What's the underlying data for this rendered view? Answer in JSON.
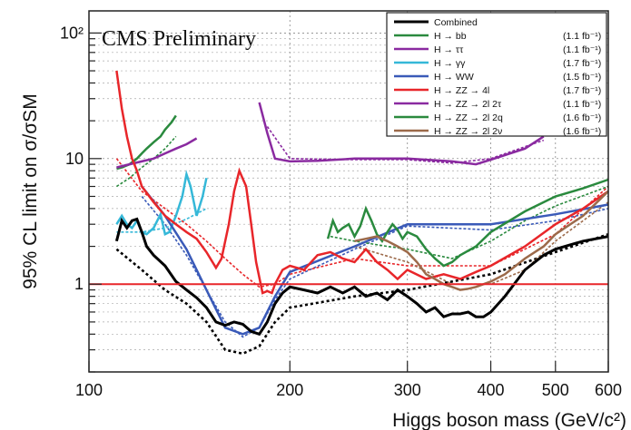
{
  "chart_data": {
    "type": "line",
    "annotation": "CMS Preliminary",
    "xlabel": "Higgs boson mass (GeV/c²)",
    "ylabel": "95% CL limit on σ/σSM",
    "xscale": "log",
    "yscale": "log",
    "xlim": [
      100,
      600
    ],
    "ylim": [
      0.2,
      150
    ],
    "xticks": [
      100,
      200,
      300,
      400,
      500,
      600
    ],
    "yticks": [
      1,
      10,
      100
    ],
    "ytick_labels": [
      "1",
      "10",
      "10²"
    ],
    "grid": true,
    "legend_position": "top-right",
    "reference_line": {
      "y": 1,
      "color": "#e8262a"
    },
    "series": [
      {
        "name": "Combined",
        "lumi": "",
        "color": "#000000",
        "width": 3,
        "x": [
          110,
          112,
          114,
          116,
          118,
          120,
          122,
          125,
          130,
          135,
          140,
          145,
          150,
          155,
          160,
          165,
          170,
          175,
          180,
          185,
          190,
          195,
          200,
          210,
          220,
          230,
          240,
          250,
          260,
          270,
          280,
          290,
          300,
          310,
          320,
          330,
          340,
          350,
          360,
          370,
          380,
          390,
          400,
          420,
          450,
          480,
          500,
          550,
          600
        ],
        "y": [
          2.2,
          3.2,
          2.8,
          3.2,
          3.3,
          2.6,
          2.0,
          1.7,
          1.4,
          1.05,
          0.9,
          0.78,
          0.65,
          0.5,
          0.47,
          0.5,
          0.48,
          0.42,
          0.4,
          0.5,
          0.7,
          0.85,
          0.95,
          0.9,
          0.85,
          0.95,
          0.85,
          0.95,
          0.8,
          0.85,
          0.75,
          0.9,
          0.8,
          0.7,
          0.6,
          0.65,
          0.55,
          0.58,
          0.58,
          0.6,
          0.55,
          0.55,
          0.6,
          0.8,
          1.3,
          1.7,
          1.9,
          2.2,
          2.4
        ]
      },
      {
        "name": "H → bb",
        "lumi": "(1.1 fb⁻¹)",
        "color": "#2a8a3e",
        "width": 2.5,
        "x": [
          110,
          112,
          115,
          118,
          120,
          122,
          125,
          128,
          130,
          133,
          135
        ],
        "y": [
          8.3,
          8.5,
          9.0,
          10.0,
          11.0,
          12.0,
          13.5,
          15.0,
          17.0,
          19.5,
          22.0
        ]
      },
      {
        "name": "H → ττ",
        "lumi": "(1.1 fb⁻¹)",
        "color": "#8a2aa0",
        "width": 2.5,
        "x": [
          110,
          115,
          120,
          125,
          130,
          135,
          140,
          145
        ],
        "y": [
          8.5,
          9.0,
          9.5,
          10.0,
          11.0,
          12.0,
          13.0,
          14.5
        ]
      },
      {
        "name": "H → γγ",
        "lumi": "(1.7 fb⁻¹)",
        "color": "#35b8d8",
        "width": 2.5,
        "x": [
          110,
          112,
          114,
          116,
          118,
          120,
          122,
          125,
          128,
          130,
          132,
          135,
          138,
          140,
          142,
          145,
          148,
          150
        ],
        "y": [
          3.0,
          3.5,
          3.0,
          2.8,
          3.2,
          2.6,
          2.5,
          2.8,
          3.6,
          2.5,
          2.6,
          3.5,
          5.0,
          7.5,
          6.0,
          3.5,
          5.0,
          7.0
        ]
      },
      {
        "name": "H → WW",
        "lumi": "(1.5 fb⁻¹)",
        "color": "#3a5ab8",
        "width": 2.5,
        "x": [
          120,
          130,
          140,
          150,
          160,
          170,
          180,
          190,
          200,
          250,
          300,
          400,
          500,
          600
        ],
        "y": [
          6.0,
          3.5,
          1.9,
          0.9,
          0.45,
          0.4,
          0.45,
          0.8,
          1.25,
          2.0,
          3.0,
          3.0,
          3.6,
          4.3
        ]
      },
      {
        "name": "H → ZZ → 4l",
        "lumi": "(1.7 fb⁻¹)",
        "color": "#e8262a",
        "width": 2.5,
        "x": [
          110,
          112,
          114,
          116,
          118,
          120,
          125,
          130,
          135,
          140,
          145,
          150,
          155,
          158,
          162,
          165,
          168,
          172,
          175,
          178,
          182,
          185,
          188,
          190,
          195,
          200,
          210,
          220,
          230,
          240,
          250,
          260,
          270,
          280,
          290,
          300,
          320,
          340,
          360,
          380,
          400,
          450,
          500,
          550,
          600
        ],
        "y": [
          50,
          25,
          15,
          10,
          8.0,
          6.0,
          4.5,
          3.5,
          3.0,
          2.6,
          2.3,
          1.8,
          1.35,
          1.6,
          3.0,
          5.5,
          8.0,
          6.0,
          3.0,
          1.5,
          0.85,
          0.88,
          0.85,
          1.0,
          1.3,
          1.4,
          1.3,
          1.7,
          1.8,
          1.6,
          1.5,
          1.9,
          1.5,
          1.3,
          1.1,
          1.3,
          1.1,
          1.2,
          1.1,
          1.25,
          1.4,
          2.0,
          3.0,
          4.0,
          5.5
        ]
      },
      {
        "name": "H → ZZ → 2l 2τ",
        "lumi": "(1.1 fb⁻¹)",
        "color": "#8a2aa0",
        "width": 2.5,
        "x": [
          180,
          185,
          190,
          200,
          220,
          250,
          300,
          350,
          380,
          400,
          450,
          480
        ],
        "y": [
          28,
          16,
          10,
          9.5,
          9.6,
          10.0,
          10.0,
          9.5,
          9.0,
          9.8,
          12,
          15
        ]
      },
      {
        "name": "H → ZZ → 2l 2q",
        "lumi": "(1.6 fb⁻¹)",
        "color": "#2a8a3e",
        "width": 2.5,
        "x": [
          228,
          232,
          236,
          240,
          245,
          250,
          255,
          260,
          265,
          270,
          275,
          280,
          285,
          290,
          295,
          300,
          310,
          320,
          330,
          340,
          350,
          360,
          380,
          400,
          450,
          500,
          550,
          600
        ],
        "y": [
          2.3,
          3.2,
          2.6,
          2.8,
          3.0,
          2.4,
          2.9,
          4.0,
          3.2,
          2.5,
          2.2,
          2.6,
          3.0,
          2.7,
          2.3,
          2.6,
          2.4,
          1.9,
          1.6,
          1.4,
          1.5,
          1.7,
          2.0,
          2.6,
          3.8,
          5.0,
          5.8,
          6.8
        ]
      },
      {
        "name": "H → ZZ → 2l 2ν",
        "lumi": "(1.6 fb⁻¹)",
        "color": "#9c6a4a",
        "width": 2.5,
        "x": [
          250,
          260,
          270,
          280,
          290,
          300,
          310,
          320,
          330,
          340,
          350,
          360,
          370,
          380,
          400,
          420,
          450,
          480,
          500,
          550,
          600
        ],
        "y": [
          2.2,
          2.3,
          2.4,
          2.2,
          2.0,
          1.8,
          1.5,
          1.2,
          1.1,
          1.0,
          0.95,
          0.9,
          0.92,
          0.95,
          1.05,
          1.2,
          1.6,
          2.0,
          2.5,
          3.5,
          5.5
        ]
      }
    ],
    "expected_series": [
      {
        "of": "Combined",
        "color": "#000000",
        "x": [
          110,
          120,
          130,
          140,
          150,
          160,
          170,
          180,
          190,
          200,
          250,
          300,
          400,
          500,
          600
        ],
        "y": [
          1.9,
          1.3,
          0.9,
          0.7,
          0.5,
          0.3,
          0.28,
          0.32,
          0.5,
          0.65,
          0.8,
          0.9,
          1.2,
          1.8,
          2.5
        ]
      },
      {
        "of": "H → bb",
        "color": "#2a8a3e",
        "x": [
          110,
          115,
          120,
          125,
          130,
          135
        ],
        "y": [
          6.0,
          7.0,
          8.5,
          10.0,
          12.0,
          15.0
        ]
      },
      {
        "of": "H → γγ",
        "color": "#35b8d8",
        "x": [
          110,
          120,
          130,
          140,
          150
        ],
        "y": [
          2.6,
          2.6,
          2.8,
          3.3,
          4.0
        ]
      },
      {
        "of": "H → WW",
        "color": "#3a5ab8",
        "x": [
          120,
          130,
          140,
          150,
          160,
          170,
          180,
          190,
          200,
          250,
          300,
          400,
          500,
          600
        ],
        "y": [
          5.0,
          3.0,
          1.7,
          0.9,
          0.5,
          0.38,
          0.45,
          0.75,
          1.1,
          1.9,
          2.9,
          2.7,
          3.2,
          4.0
        ]
      },
      {
        "of": "H → ZZ → 4l",
        "color": "#e8262a",
        "x": [
          110,
          120,
          130,
          140,
          150,
          160,
          170,
          180,
          190,
          200,
          250,
          300,
          400,
          500,
          600
        ],
        "y": [
          10,
          5.5,
          4.0,
          3.0,
          2.2,
          1.6,
          1.2,
          0.95,
          1.0,
          1.2,
          1.6,
          1.4,
          1.4,
          2.5,
          6.0
        ]
      },
      {
        "of": "H → ZZ → 2l 2τ",
        "color": "#8a2aa0",
        "x": [
          185,
          200,
          250,
          300,
          350,
          400,
          480
        ],
        "y": [
          18,
          10.0,
          9.8,
          9.8,
          9.2,
          10.0,
          14.0
        ]
      },
      {
        "of": "H → ZZ → 2l 2q",
        "color": "#2a8a3e",
        "x": [
          230,
          250,
          280,
          300,
          350,
          400,
          450,
          500,
          600
        ],
        "y": [
          2.4,
          2.2,
          2.0,
          1.9,
          1.6,
          2.2,
          3.2,
          4.2,
          6.0
        ]
      },
      {
        "of": "H → ZZ → 2l 2ν",
        "color": "#9c6a4a",
        "x": [
          250,
          300,
          350,
          400,
          450,
          500,
          600
        ],
        "y": [
          2.0,
          1.5,
          1.0,
          1.0,
          1.3,
          2.2,
          4.5
        ]
      }
    ]
  }
}
